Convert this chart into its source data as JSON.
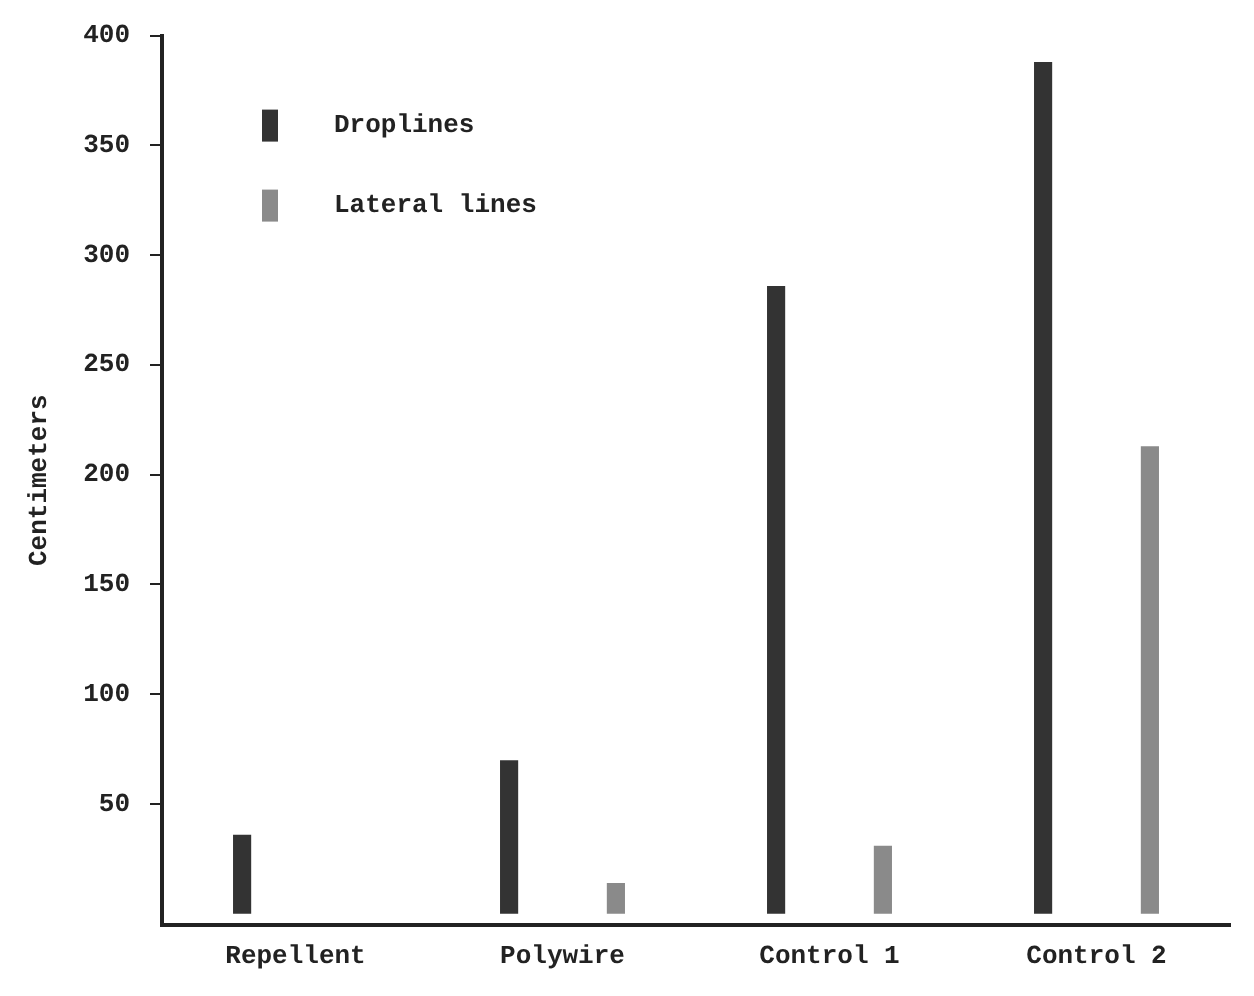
{
  "chart_data": {
    "type": "bar",
    "ylabel": "Centimeters",
    "categories": [
      "Repellent",
      "Polywire",
      "Control 1",
      "Control 2"
    ],
    "series": [
      {
        "name": "Droplines",
        "color": "#333333",
        "values": [
          36,
          70,
          286,
          388
        ]
      },
      {
        "name": "Lateral lines",
        "color": "#8a8a8a",
        "values": [
          null,
          14,
          31,
          213
        ]
      }
    ],
    "ylim": [
      -5,
      400
    ],
    "yticks": [
      50,
      100,
      150,
      200,
      250,
      300,
      350,
      400
    ],
    "grid": false,
    "legend": "top left"
  }
}
